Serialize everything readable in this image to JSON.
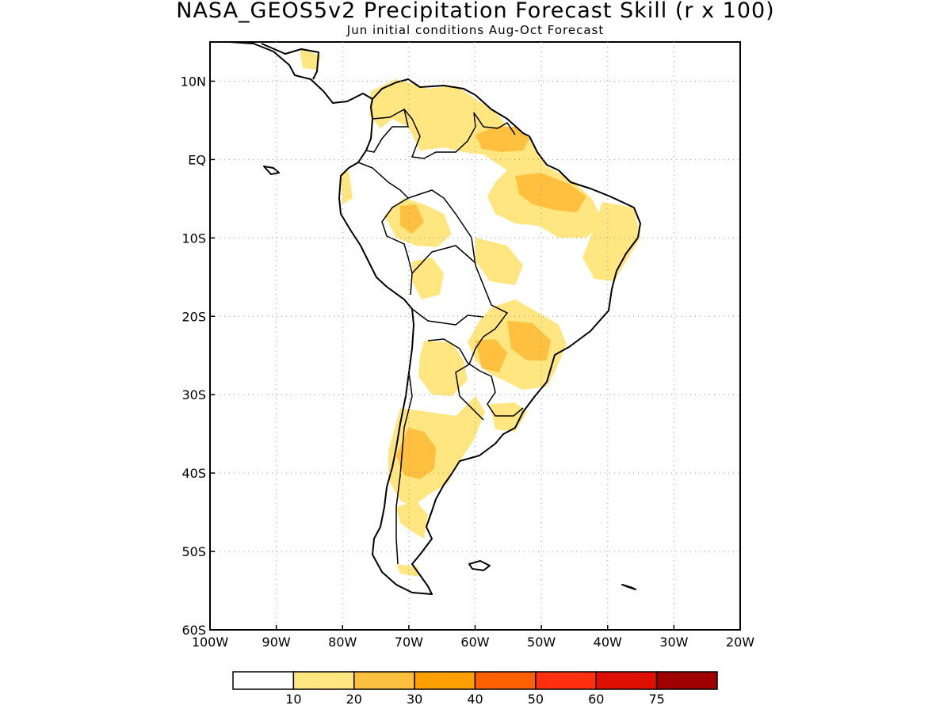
{
  "title": "NASA_GEOS5v2 Precipitation Forecast Skill (r x 100)",
  "subtitle": "Jun initial conditions  Aug-Oct Forecast",
  "map": {
    "lon_range": [
      -100,
      -20
    ],
    "lat_range": [
      -60,
      15
    ],
    "grid": "dotted",
    "x_tick_labels": [
      "100W",
      "90W",
      "80W",
      "70W",
      "60W",
      "50W",
      "40W",
      "30W",
      "20W"
    ],
    "y_tick_labels": [
      "10N",
      "EQ",
      "10S",
      "20S",
      "30S",
      "40S",
      "50S",
      "60S"
    ]
  },
  "colorbar": {
    "labels": [
      "10",
      "20",
      "30",
      "40",
      "50",
      "60",
      "75"
    ],
    "colors": [
      "#ffffff",
      "#ffe680",
      "#ffc040",
      "#ffa000",
      "#ff6000",
      "#ff3010",
      "#e01000",
      "#a00000"
    ]
  },
  "skill_regions": {
    "light": [
      "northwest-colombia-venezuela",
      "guianas",
      "north-brazil-amazon",
      "northeast-brazil",
      "peru-bolivia",
      "central-brazil",
      "paraguay-south-brazil",
      "central-argentina",
      "patagonia"
    ],
    "medium": [
      "amazon-delta",
      "french-guiana-suriname",
      "minas-gerais",
      "parana",
      "central-argentina-andes"
    ],
    "level_colors": {
      "light": "#ffe680",
      "medium": "#ffc040"
    }
  }
}
